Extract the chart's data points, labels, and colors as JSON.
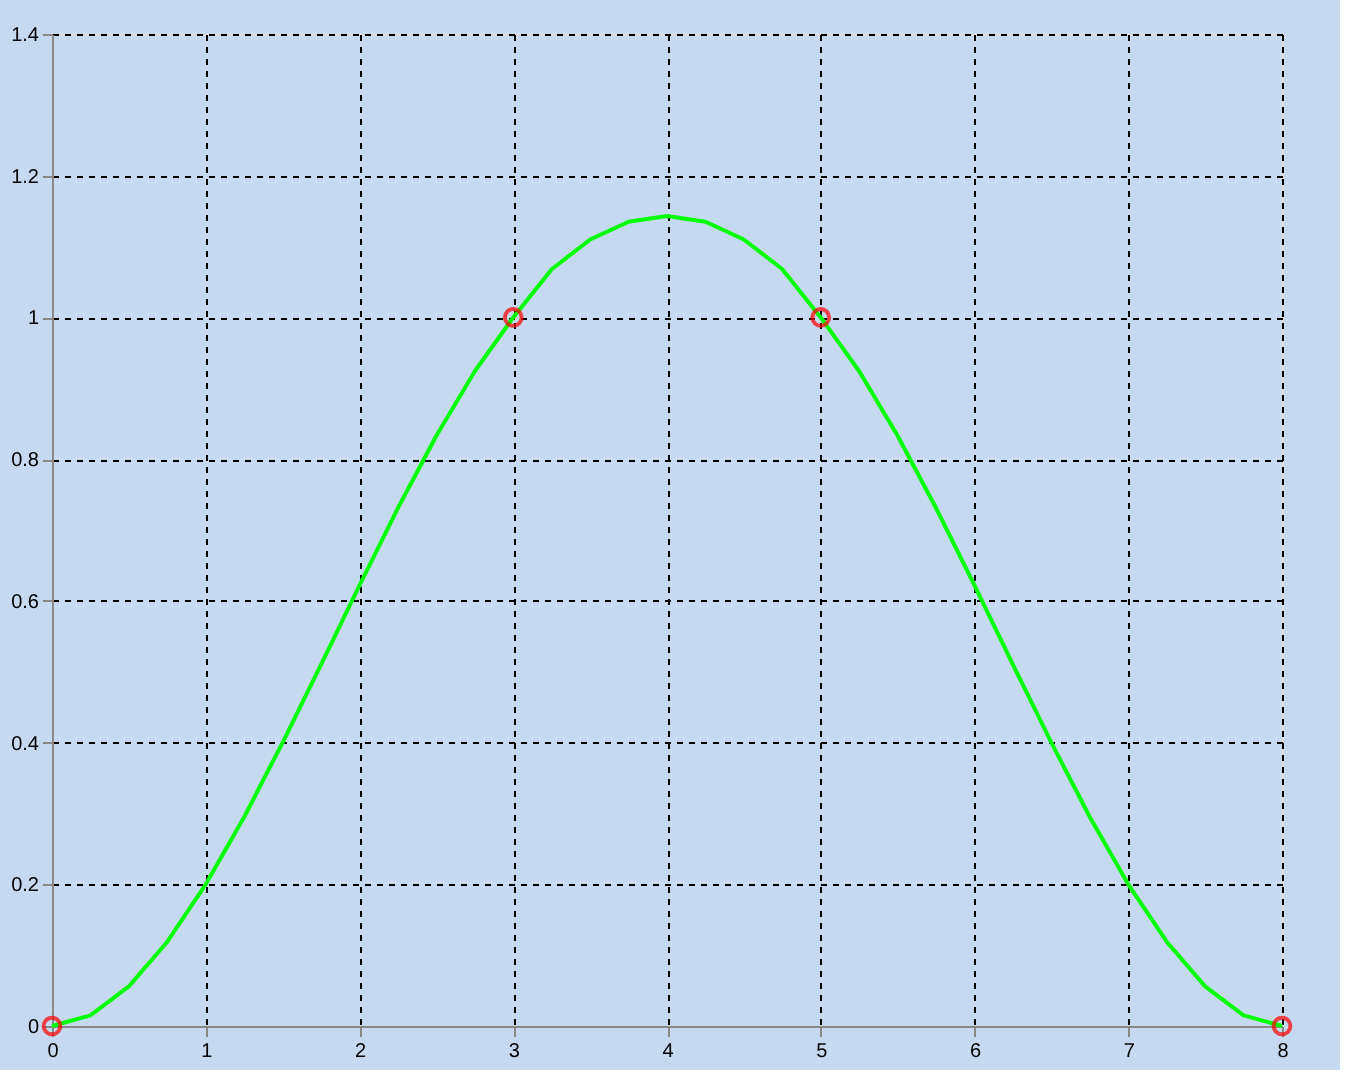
{
  "chart_data": {
    "type": "line",
    "xlim": [
      0,
      8
    ],
    "ylim": [
      0,
      1.4
    ],
    "xticks": [
      0,
      1,
      2,
      3,
      4,
      5,
      6,
      7,
      8
    ],
    "yticks": [
      0,
      0.2,
      0.4,
      0.6,
      0.8,
      1,
      1.2,
      1.4
    ],
    "grid": true,
    "series": [
      {
        "type": "line",
        "color": "#00ff00",
        "marker": "none",
        "line_style": "solid",
        "x": [
          0,
          0.25,
          0.5,
          0.75,
          1,
          1.25,
          1.5,
          1.75,
          2,
          2.25,
          2.5,
          2.75,
          3,
          3.25,
          3.5,
          3.75,
          4,
          4.25,
          4.5,
          4.75,
          5,
          5.25,
          5.5,
          5.75,
          6,
          6.25,
          6.5,
          6.75,
          7,
          7.25,
          7.5,
          7.75,
          8
        ],
        "values": [
          0,
          0.015,
          0.056,
          0.119,
          0.2,
          0.295,
          0.4,
          0.51,
          0.622,
          0.731,
          0.833,
          0.924,
          1.0,
          1.068,
          1.11,
          1.135,
          1.143,
          1.135,
          1.11,
          1.068,
          1.0,
          0.924,
          0.833,
          0.731,
          0.622,
          0.51,
          0.4,
          0.295,
          0.2,
          0.119,
          0.056,
          0.015,
          0
        ]
      },
      {
        "type": "scatter",
        "color": "#ff0000",
        "marker": "circle",
        "x": [
          0,
          3,
          5,
          8
        ],
        "values": [
          0,
          1,
          1,
          0
        ]
      }
    ]
  }
}
